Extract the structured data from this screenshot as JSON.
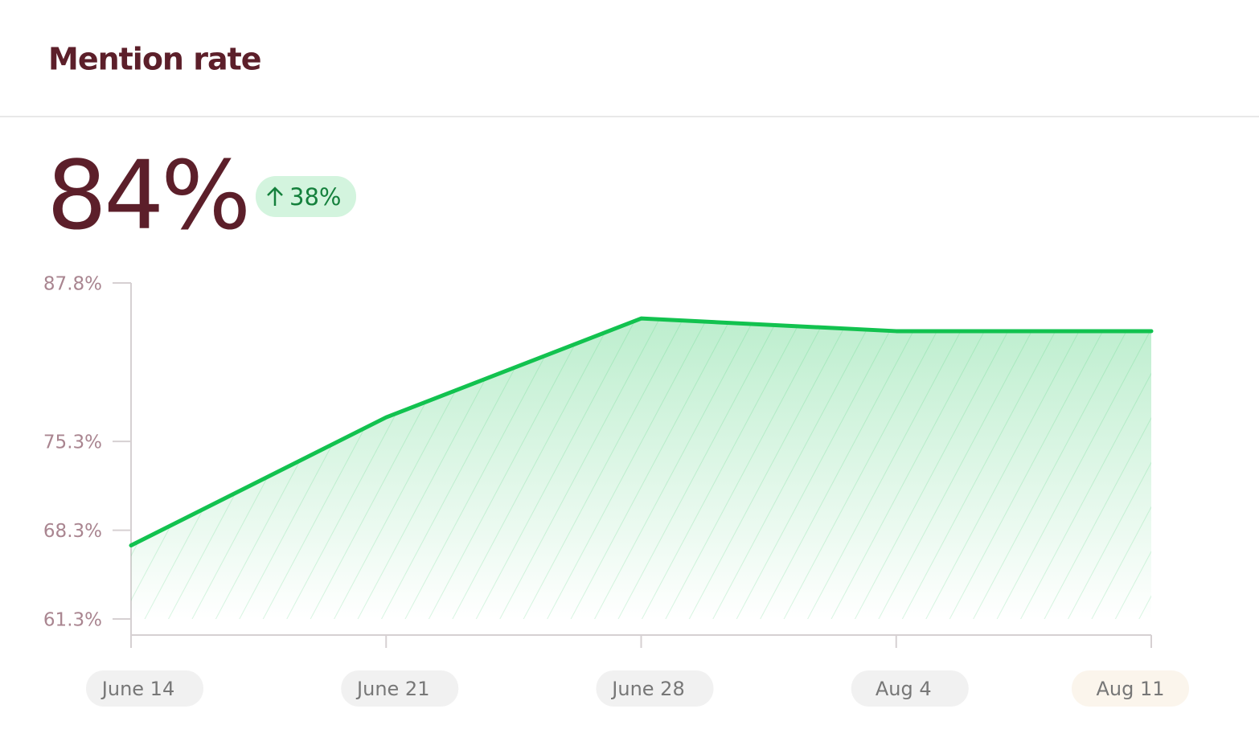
{
  "header": {
    "title": "Mention rate"
  },
  "summary": {
    "value": "84%",
    "change": "38%"
  },
  "chart_data": {
    "type": "area",
    "categories": [
      "June 14",
      "June 21",
      "June 28",
      "Aug 4",
      "Aug 11"
    ],
    "series": [
      {
        "color": "#12c24f",
        "values": [
          67.1,
          77.2,
          85.0,
          84.0,
          84.0
        ]
      }
    ],
    "ylim": [
      61.3,
      87.8
    ],
    "yticks": [
      {
        "value": 87.8,
        "label": "87.8%"
      },
      {
        "value": 75.3,
        "label": "75.3%"
      },
      {
        "value": 68.3,
        "label": "68.3%"
      },
      {
        "value": 61.3,
        "label": "61.3%"
      }
    ]
  }
}
